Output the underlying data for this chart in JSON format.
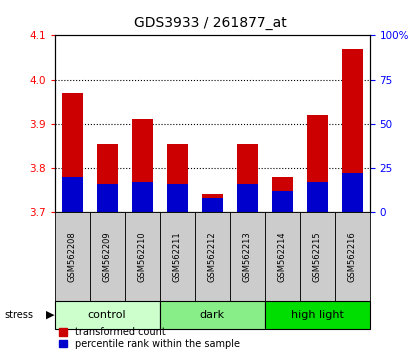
{
  "title": "GDS3933 / 261877_at",
  "samples": [
    "GSM562208",
    "GSM562209",
    "GSM562210",
    "GSM562211",
    "GSM562212",
    "GSM562213",
    "GSM562214",
    "GSM562215",
    "GSM562216"
  ],
  "red_values": [
    3.97,
    3.855,
    3.91,
    3.855,
    3.742,
    3.855,
    3.78,
    3.92,
    4.07
  ],
  "blue_percentiles": [
    20,
    16,
    17,
    16,
    8,
    16,
    12,
    17,
    22
  ],
  "ylim_left": [
    3.7,
    4.1
  ],
  "ylim_right": [
    0,
    100
  ],
  "yticks_left": [
    3.7,
    3.8,
    3.9,
    4.0,
    4.1
  ],
  "yticks_right": [
    0,
    25,
    50,
    75,
    100
  ],
  "groups": [
    {
      "label": "control",
      "start": 0,
      "end": 3,
      "color": "#ccffcc"
    },
    {
      "label": "dark",
      "start": 3,
      "end": 6,
      "color": "#88ee88"
    },
    {
      "label": "high light",
      "start": 6,
      "end": 9,
      "color": "#00dd00"
    }
  ],
  "bar_width": 0.6,
  "red_color": "#cc0000",
  "blue_color": "#0000cc",
  "base_value": 3.7,
  "label_bg_color": "#cccccc",
  "grid_linestyle": ":",
  "grid_linewidth": 0.8,
  "grid_yticks": [
    3.8,
    3.9,
    4.0
  ],
  "title_fontsize": 10,
  "tick_fontsize": 7.5,
  "sample_fontsize": 6,
  "group_fontsize": 8,
  "legend_fontsize": 7
}
